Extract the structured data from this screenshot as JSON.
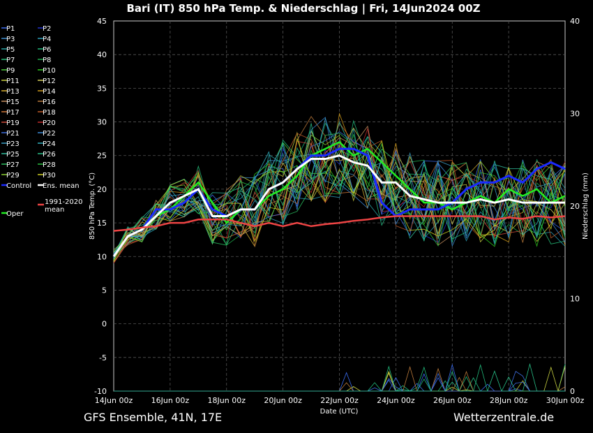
{
  "chart_data": {
    "type": "line",
    "title": "Bari  (IT)  850 hPa Temp. & Niederschlag | Fri, 14Jun2024 00Z",
    "xlabel": "Date (UTC)",
    "ylabel": "850 hPa Temp. (°C)",
    "y2label": "Niederschlag (mm)",
    "ylim": [
      -10,
      45
    ],
    "y2lim": [
      0,
      40
    ],
    "yticks": [
      45,
      40,
      35,
      30,
      25,
      20,
      15,
      10,
      5,
      0,
      -5,
      -10
    ],
    "y2ticks": [
      40,
      30,
      20,
      10,
      0
    ],
    "x_tick_labels": [
      "14Jun 00z",
      "16Jun 00z",
      "18Jun 00z",
      "20Jun 00z",
      "22Jun 00z",
      "24Jun 00z",
      "26Jun 00z",
      "28Jun 00z",
      "30Jun 00z"
    ],
    "grid": true,
    "legend_position": "left",
    "legend": [
      {
        "name": "P1",
        "color": "#3a6cf0"
      },
      {
        "name": "P2",
        "color": "#2233cc"
      },
      {
        "name": "P3",
        "color": "#3d8fd0"
      },
      {
        "name": "P4",
        "color": "#2a9db8"
      },
      {
        "name": "P5",
        "color": "#27a6a6"
      },
      {
        "name": "P6",
        "color": "#20b87a"
      },
      {
        "name": "P7",
        "color": "#26c07a"
      },
      {
        "name": "P8",
        "color": "#1eaa4c"
      },
      {
        "name": "P9",
        "color": "#4ad03a"
      },
      {
        "name": "P10",
        "color": "#2fcc20"
      },
      {
        "name": "P11",
        "color": "#c8d040"
      },
      {
        "name": "P12",
        "color": "#d6cf58"
      },
      {
        "name": "P13",
        "color": "#d8b030"
      },
      {
        "name": "P14",
        "color": "#d09a1a"
      },
      {
        "name": "P15",
        "color": "#c89060"
      },
      {
        "name": "P16",
        "color": "#b8783a"
      },
      {
        "name": "P17",
        "color": "#d07838"
      },
      {
        "name": "P18",
        "color": "#c05a28"
      },
      {
        "name": "P19",
        "color": "#d04a3a"
      },
      {
        "name": "P20",
        "color": "#c02a2a"
      },
      {
        "name": "P21",
        "color": "#3d6ee0"
      },
      {
        "name": "P22",
        "color": "#3a8ad8"
      },
      {
        "name": "P23",
        "color": "#3aa0c8"
      },
      {
        "name": "P24",
        "color": "#30b0c0"
      },
      {
        "name": "P25",
        "color": "#30c0a0"
      },
      {
        "name": "P26",
        "color": "#28c088"
      },
      {
        "name": "P27",
        "color": "#2ac060"
      },
      {
        "name": "P28",
        "color": "#28c040"
      },
      {
        "name": "P29",
        "color": "#8ad030"
      },
      {
        "name": "P30",
        "color": "#d0d020"
      },
      {
        "name": "Control",
        "color": "#1a2aff"
      },
      {
        "name": "Ens. mean",
        "color": "#ffffff"
      },
      {
        "name": "1991-2020 mean",
        "color": "#ee4444"
      },
      {
        "name": "Oper",
        "color": "#22ee22"
      }
    ],
    "series": [
      {
        "name": "Oper",
        "color": "#22ee22",
        "x": [
          0,
          0.5,
          1,
          1.5,
          2,
          2.5,
          3,
          3.5,
          4,
          4.5,
          5,
          5.5,
          6,
          6.5,
          7,
          7.5,
          8,
          8.5,
          9,
          9.5,
          10,
          10.5,
          11,
          11.5,
          12,
          12.5,
          13,
          13.5,
          14,
          14.5,
          15,
          15.5,
          16
        ],
        "values": [
          10,
          13,
          14,
          16,
          17,
          19,
          21,
          18,
          15,
          17,
          17,
          19,
          20,
          22,
          25,
          26,
          27,
          25,
          26,
          24,
          22,
          20,
          18,
          18,
          17,
          18,
          19,
          18,
          20,
          19,
          20,
          18,
          19
        ]
      },
      {
        "name": "Control",
        "color": "#1a2aff",
        "x": [
          0,
          0.5,
          1,
          1.5,
          2,
          2.5,
          3,
          3.5,
          4,
          4.5,
          5,
          5.5,
          6,
          6.5,
          7,
          7.5,
          8,
          8.5,
          9,
          9.5,
          10,
          10.5,
          11,
          11.5,
          12,
          12.5,
          13,
          13.5,
          14,
          14.5,
          15,
          15.5,
          16
        ],
        "values": [
          10,
          13,
          14,
          17,
          17,
          18,
          20,
          17,
          16,
          17,
          17,
          20,
          21,
          23,
          25,
          25,
          26,
          26,
          25,
          18,
          16,
          17,
          17,
          17,
          18,
          20,
          21,
          21,
          22,
          21,
          23,
          24,
          23
        ]
      },
      {
        "name": "Ens. mean",
        "color": "#ffffff",
        "x": [
          0,
          0.5,
          1,
          1.5,
          2,
          2.5,
          3,
          3.5,
          4,
          4.5,
          5,
          5.5,
          6,
          6.5,
          7,
          7.5,
          8,
          8.5,
          9,
          9.5,
          10,
          10.5,
          11,
          11.5,
          12,
          12.5,
          13,
          13.5,
          14,
          14.5,
          15,
          15.5,
          16
        ],
        "values": [
          10,
          13,
          14,
          16,
          18,
          19,
          20,
          16,
          16,
          17,
          17,
          20,
          21,
          23,
          24.5,
          24.5,
          25,
          24,
          23.5,
          21,
          21,
          19,
          18.5,
          18,
          18,
          18,
          18.5,
          18,
          18.5,
          18,
          18,
          18,
          18
        ]
      },
      {
        "name": "1991-2020 mean",
        "color": "#ee4444",
        "x": [
          0,
          0.5,
          1,
          1.5,
          2,
          2.5,
          3,
          3.5,
          4,
          4.5,
          5,
          5.5,
          6,
          6.5,
          7,
          7.5,
          8,
          8.5,
          9,
          9.5,
          10,
          10.5,
          11,
          11.5,
          12,
          12.5,
          13,
          13.5,
          14,
          14.5,
          15,
          15.5,
          16
        ],
        "values": [
          13.8,
          14,
          14.3,
          14.5,
          15,
          15,
          15.5,
          15.5,
          15.5,
          15,
          14.5,
          15,
          14.5,
          15,
          14.5,
          14.8,
          15,
          15.3,
          15.5,
          15.8,
          16,
          16,
          16,
          16,
          16,
          16,
          16,
          15.5,
          15.8,
          15.6,
          16,
          15.8,
          16
        ]
      }
    ]
  },
  "footer": {
    "left": "GFS Ensemble, 41N, 17E",
    "right": "Wetterzentrale.de"
  }
}
